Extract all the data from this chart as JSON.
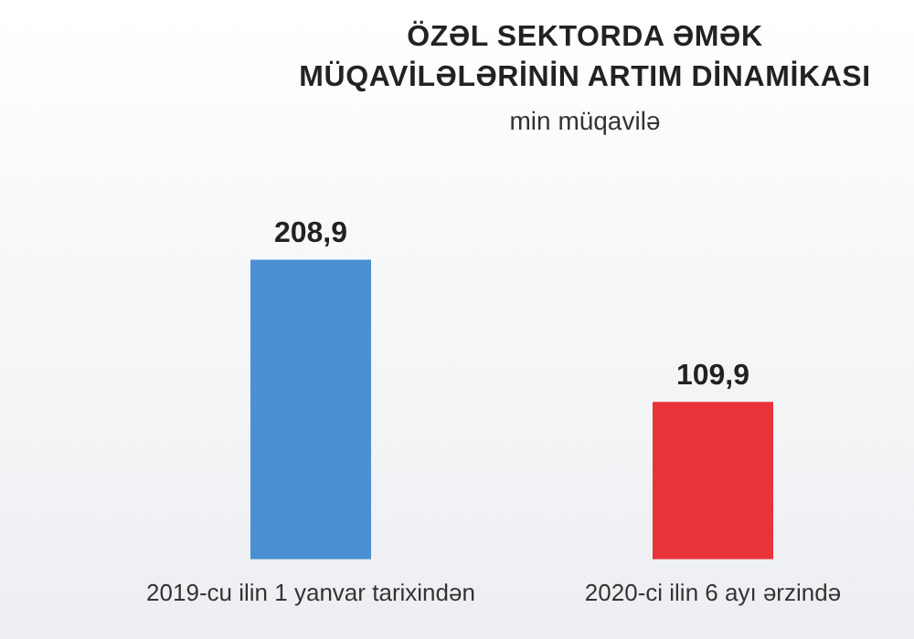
{
  "chart_data": {
    "type": "bar",
    "title": "ÖZƏL SEKTORDA ƏMƏK MÜQAVİLƏLƏRİNİN ARTIM DİNAMİKASI",
    "subtitle": "min müqavilə",
    "categories": [
      "2019-cu ilin 1 yanvar tarixindən",
      "2020-ci ilin 6 ayı ərzində"
    ],
    "values": [
      208.9,
      109.9
    ],
    "value_labels": [
      "208,9",
      "109,9"
    ],
    "colors": [
      "#4a90d2",
      "#e8333a"
    ],
    "grid": false,
    "legend": false,
    "tick_labels": "x"
  }
}
